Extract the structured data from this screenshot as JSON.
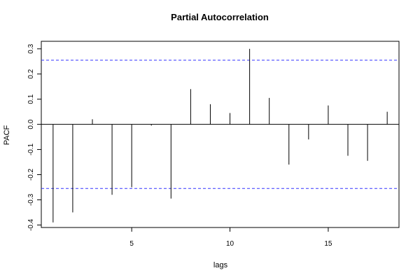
{
  "chart_data": {
    "type": "bar",
    "title": "Partial Autocorrelation",
    "xlabel": "lags",
    "ylabel": "PACF",
    "xlim": [
      0.4,
      18.6
    ],
    "ylim": [
      -0.41,
      0.33
    ],
    "x_ticks": [
      5,
      10,
      15
    ],
    "y_ticks": [
      -0.4,
      -0.3,
      -0.2,
      -0.1,
      0.0,
      0.1,
      0.2,
      0.3
    ],
    "y_tick_labels": [
      "-0.4",
      "-0.3",
      "-0.2",
      "-0.1",
      "0.0",
      "0.1",
      "0.2",
      "0.3"
    ],
    "lags": [
      1,
      2,
      3,
      4,
      5,
      6,
      7,
      8,
      9,
      10,
      11,
      12,
      13,
      14,
      15,
      16,
      17,
      18
    ],
    "values": [
      -0.39,
      -0.35,
      0.02,
      -0.28,
      -0.25,
      -0.005,
      -0.295,
      0.14,
      0.08,
      0.045,
      0.3,
      0.105,
      -0.16,
      -0.06,
      0.075,
      -0.125,
      -0.145,
      0.05
    ],
    "confidence_bounds": [
      0.255,
      -0.255
    ],
    "colors": {
      "bars": "#000000",
      "confidence": "#3333ff",
      "zero_line": "#000000"
    },
    "grid": false
  }
}
